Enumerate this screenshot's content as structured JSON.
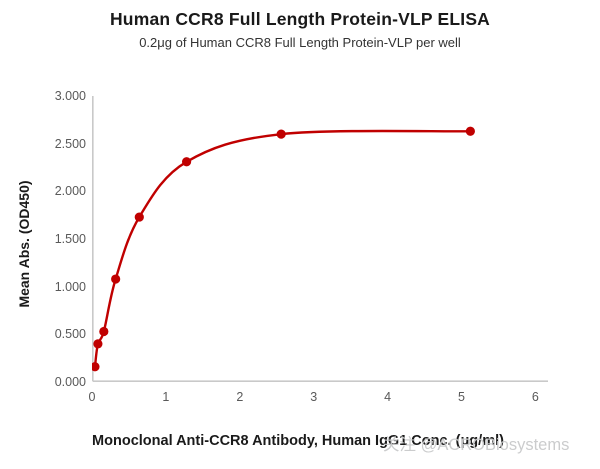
{
  "header": {
    "title": "Human CCR8 Full Length Protein-VLP ELISA",
    "subtitle": "0.2μg of Human CCR8 Full Length Protein-VLP per well"
  },
  "chart_data": {
    "type": "line",
    "title": "Human CCR8 Full Length Protein-VLP ELISA",
    "subtitle": "0.2μg of Human CCR8 Full Length Protein-VLP per well",
    "xlabel": "Monoclonal Anti-CCR8 Antibody, Human IgG1 Conc. (μg/ml)",
    "ylabel": "Mean Abs. (OD450)",
    "x": [
      0.04,
      0.08,
      0.16,
      0.32,
      0.64,
      1.28,
      2.56,
      5.12
    ],
    "y": [
      0.16,
      0.4,
      0.53,
      1.08,
      1.73,
      2.31,
      2.6,
      2.63
    ],
    "xlim": [
      0,
      6
    ],
    "ylim": [
      0,
      3
    ],
    "x_tick_labels": [
      "0",
      "1",
      "2",
      "3",
      "4",
      "5",
      "6"
    ],
    "y_tick_labels": [
      "0.000",
      "0.500",
      "1.000",
      "1.500",
      "2.000",
      "2.500",
      "3.000"
    ],
    "grid": "off",
    "legend": "none",
    "line_color": "#C00000",
    "marker_color": "#C00000",
    "axis_line_color": "#c9c9c9",
    "smooth": true
  },
  "watermark": {
    "text": "关注 @ACROBiosystems",
    "color": "#c9cacb"
  }
}
